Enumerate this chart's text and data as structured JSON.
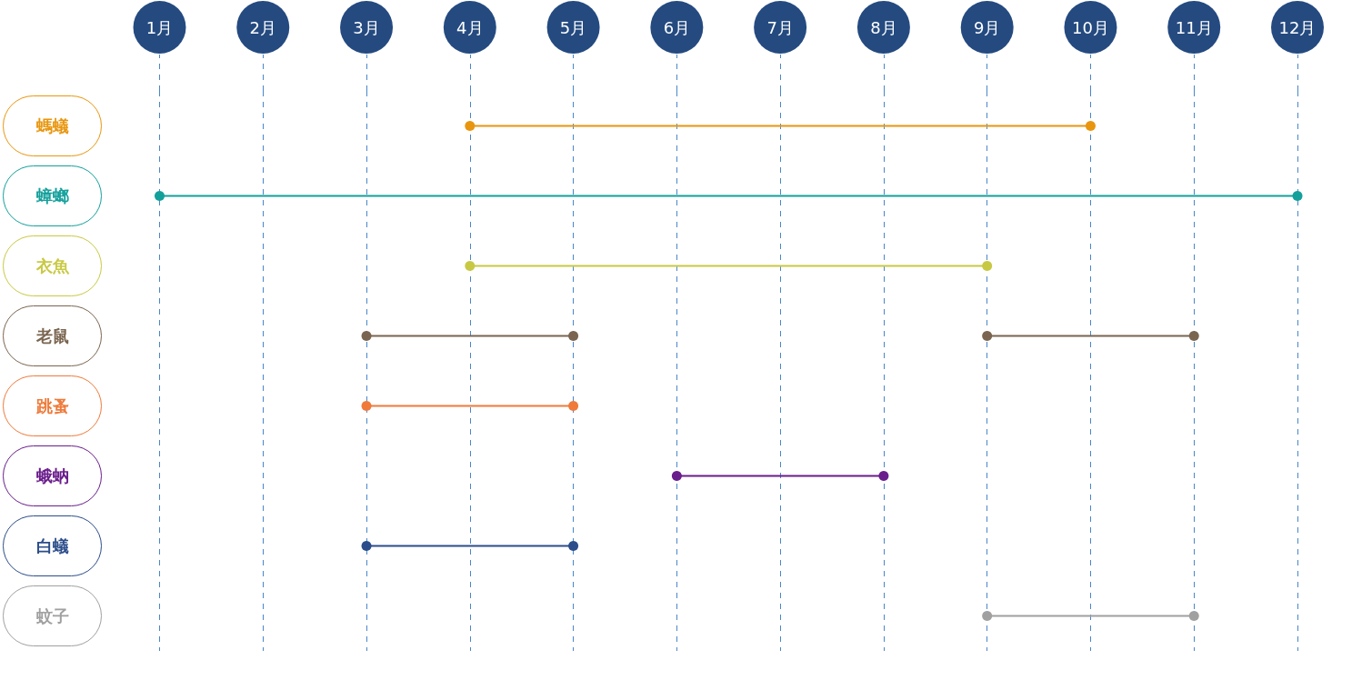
{
  "chart_data": {
    "type": "bar",
    "orientation": "horizontal",
    "categories": [
      "螞蟻",
      "蟑螂",
      "衣魚",
      "老鼠",
      "跳蚤",
      "蛾蚋",
      "白蟻",
      "蚊子"
    ],
    "series": [
      {
        "base": [
          4,
          1,
          4,
          3,
          3,
          6,
          3,
          9
        ],
        "values": [
          6,
          11,
          5,
          2,
          2,
          2,
          2,
          2
        ],
        "colors": [
          "#e8960f",
          "#13a09b",
          "#c8c943",
          "#7a6550",
          "#ef7a3a",
          "#6a1d8c",
          "#2b4d8a",
          "#a0a0a0"
        ]
      },
      {
        "base": [
          null,
          null,
          null,
          9,
          null,
          null,
          null,
          null
        ],
        "values": [
          null,
          null,
          null,
          2,
          null,
          null,
          null,
          null
        ],
        "color": "#7a6550"
      },
      {
        "type": "scatter",
        "x": [
          "螞蟻",
          "螞蟻",
          "蟑螂",
          "蟑螂",
          "衣魚",
          "衣魚",
          "老鼠",
          "老鼠",
          "老鼠",
          "老鼠",
          "跳蚤",
          "跳蚤",
          "蛾蚋",
          "蛾蚋",
          "白蟻",
          "白蟻",
          "蚊子",
          "蚊子"
        ],
        "values": [
          4,
          10,
          1,
          12,
          4,
          9,
          3,
          5,
          9,
          11,
          3,
          5,
          6,
          8,
          3,
          5,
          9,
          11
        ],
        "colors": [
          "#e8960f",
          "#e8960f",
          "#13a09b",
          "#13a09b",
          "#c8c943",
          "#c8c943",
          "#7a6550",
          "#7a6550",
          "#7a6550",
          "#7a6550",
          "#ef7a3a",
          "#ef7a3a",
          "#6a1d8c",
          "#6a1d8c",
          "#2b4d8a",
          "#2b4d8a",
          "#a0a0a0",
          "#a0a0a0"
        ]
      }
    ],
    "xlim": [
      1,
      12
    ],
    "xticks": [
      {
        "value": 1,
        "label": "1月"
      },
      {
        "value": 2,
        "label": "2月"
      },
      {
        "value": 3,
        "label": "3月"
      },
      {
        "value": 4,
        "label": "4月"
      },
      {
        "value": 5,
        "label": "5月"
      },
      {
        "value": 6,
        "label": "6月"
      },
      {
        "value": 7,
        "label": "7月"
      },
      {
        "value": 8,
        "label": "8月"
      },
      {
        "value": 9,
        "label": "9月"
      },
      {
        "value": 10,
        "label": "10月"
      },
      {
        "value": 11,
        "label": "11月"
      },
      {
        "value": 12,
        "label": "12月"
      }
    ],
    "grid": "x",
    "marker": "circle"
  }
}
